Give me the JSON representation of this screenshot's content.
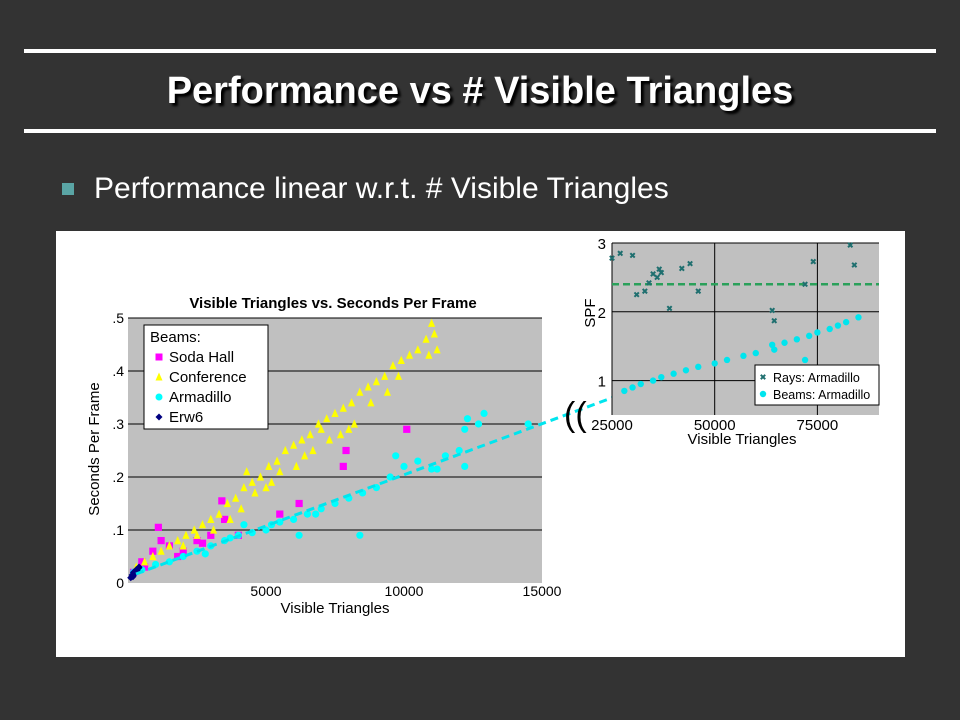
{
  "slide": {
    "title": "Performance vs # Visible Triangles",
    "bullet": "Performance linear w.r.t. # Visible Triangles",
    "accent_color": "#5aa5a5"
  },
  "chart_data": [
    {
      "type": "scatter",
      "title": "Visible Triangles vs. Seconds Per Frame",
      "xlabel": "Visible Triangles",
      "ylabel": "Seconds Per Frame",
      "xlim": [
        0,
        15000
      ],
      "ylim": [
        0,
        0.5
      ],
      "xticks": [
        "5000",
        "10000",
        "15000"
      ],
      "yticks": [
        "0",
        ".1",
        ".2",
        ".3",
        ".4",
        ".5"
      ],
      "legend_title": "Beams:",
      "legend_position": "top-left",
      "background": "#c0c0c0",
      "series": [
        {
          "name": "Soda Hall",
          "marker": "square",
          "color": "#ff00ff",
          "points": [
            [
              200,
              0.02
            ],
            [
              500,
              0.04
            ],
            [
              900,
              0.06
            ],
            [
              1200,
              0.08
            ],
            [
              1500,
              0.07
            ],
            [
              2000,
              0.06
            ],
            [
              2500,
              0.08
            ],
            [
              3000,
              0.09
            ],
            [
              3500,
              0.12
            ],
            [
              1100,
              0.105
            ],
            [
              3400,
              0.155
            ],
            [
              5500,
              0.13
            ],
            [
              6200,
              0.15
            ],
            [
              7800,
              0.22
            ],
            [
              7900,
              0.25
            ],
            [
              10100,
              0.29
            ],
            [
              4000,
              0.09
            ],
            [
              2700,
              0.075
            ],
            [
              1800,
              0.05
            ],
            [
              600,
              0.03
            ]
          ]
        },
        {
          "name": "Conference",
          "marker": "triangle",
          "color": "#ffff00",
          "points": [
            [
              300,
              0.03
            ],
            [
              600,
              0.04
            ],
            [
              900,
              0.05
            ],
            [
              1200,
              0.06
            ],
            [
              1500,
              0.07
            ],
            [
              1800,
              0.08
            ],
            [
              2100,
              0.09
            ],
            [
              2400,
              0.1
            ],
            [
              2700,
              0.11
            ],
            [
              3000,
              0.12
            ],
            [
              3300,
              0.13
            ],
            [
              3600,
              0.15
            ],
            [
              3900,
              0.16
            ],
            [
              4200,
              0.18
            ],
            [
              4500,
              0.19
            ],
            [
              4800,
              0.2
            ],
            [
              5100,
              0.22
            ],
            [
              5400,
              0.23
            ],
            [
              5700,
              0.25
            ],
            [
              6000,
              0.26
            ],
            [
              6300,
              0.27
            ],
            [
              6600,
              0.28
            ],
            [
              6900,
              0.3
            ],
            [
              7200,
              0.31
            ],
            [
              7500,
              0.32
            ],
            [
              7800,
              0.33
            ],
            [
              8100,
              0.34
            ],
            [
              8400,
              0.36
            ],
            [
              8700,
              0.37
            ],
            [
              9000,
              0.38
            ],
            [
              9300,
              0.39
            ],
            [
              9600,
              0.41
            ],
            [
              9900,
              0.42
            ],
            [
              10200,
              0.43
            ],
            [
              10500,
              0.44
            ],
            [
              10800,
              0.46
            ],
            [
              11000,
              0.49
            ],
            [
              11100,
              0.47
            ],
            [
              11200,
              0.44
            ],
            [
              10900,
              0.43
            ],
            [
              2000,
              0.07
            ],
            [
              2500,
              0.09
            ],
            [
              3100,
              0.1
            ],
            [
              3700,
              0.12
            ],
            [
              4100,
              0.14
            ],
            [
              4600,
              0.17
            ],
            [
              5000,
              0.18
            ],
            [
              5500,
              0.21
            ],
            [
              6100,
              0.22
            ],
            [
              6700,
              0.25
            ],
            [
              7300,
              0.27
            ],
            [
              7700,
              0.28
            ],
            [
              8200,
              0.3
            ],
            [
              8800,
              0.34
            ],
            [
              9400,
              0.36
            ],
            [
              9800,
              0.39
            ],
            [
              4300,
              0.21
            ],
            [
              5200,
              0.19
            ],
            [
              6400,
              0.24
            ],
            [
              7000,
              0.29
            ],
            [
              8000,
              0.29
            ]
          ]
        },
        {
          "name": "Armadillo",
          "marker": "circle",
          "color": "#00ffff",
          "points": [
            [
              200,
              0.02
            ],
            [
              500,
              0.025
            ],
            [
              1000,
              0.035
            ],
            [
              1500,
              0.04
            ],
            [
              2000,
              0.05
            ],
            [
              2500,
              0.06
            ],
            [
              3000,
              0.07
            ],
            [
              3500,
              0.08
            ],
            [
              4000,
              0.09
            ],
            [
              4500,
              0.095
            ],
            [
              5000,
              0.1
            ],
            [
              5500,
              0.115
            ],
            [
              6000,
              0.12
            ],
            [
              6500,
              0.13
            ],
            [
              7000,
              0.14
            ],
            [
              7500,
              0.15
            ],
            [
              8000,
              0.16
            ],
            [
              8500,
              0.17
            ],
            [
              9000,
              0.18
            ],
            [
              9500,
              0.2
            ],
            [
              10000,
              0.22
            ],
            [
              10500,
              0.23
            ],
            [
              11000,
              0.215
            ],
            [
              11500,
              0.24
            ],
            [
              12000,
              0.25
            ],
            [
              12200,
              0.29
            ],
            [
              12300,
              0.31
            ],
            [
              12700,
              0.3
            ],
            [
              12900,
              0.32
            ],
            [
              14500,
              0.3
            ],
            [
              9700,
              0.24
            ],
            [
              6200,
              0.09
            ],
            [
              5200,
              0.11
            ],
            [
              4200,
              0.11
            ],
            [
              8400,
              0.09
            ],
            [
              12200,
              0.22
            ],
            [
              11200,
              0.215
            ],
            [
              3700,
              0.085
            ],
            [
              2800,
              0.055
            ],
            [
              6800,
              0.13
            ]
          ]
        },
        {
          "name": "Erw6",
          "marker": "diamond",
          "color": "#000080",
          "points": [
            [
              100,
              0.01
            ],
            [
              150,
              0.015
            ],
            [
              200,
              0.02
            ],
            [
              250,
              0.018
            ],
            [
              300,
              0.025
            ],
            [
              350,
              0.022
            ],
            [
              400,
              0.03
            ],
            [
              180,
              0.012
            ],
            [
              280,
              0.02
            ],
            [
              380,
              0.028
            ]
          ]
        }
      ]
    },
    {
      "type": "scatter",
      "title": "",
      "xlabel": "Visible Triangles",
      "ylabel": "SPF",
      "xlim": [
        25000,
        90000
      ],
      "ylim": [
        0.5,
        3.0
      ],
      "xticks": [
        "25000",
        "50000",
        "75000"
      ],
      "yticks": [
        "1",
        "2",
        "3"
      ],
      "legend_position": "bottom-right",
      "background": "#c0c0c0",
      "series": [
        {
          "name": "Rays:  Armadillo",
          "marker": "x",
          "color": "#1f6f6f",
          "points": [
            [
              25000,
              2.78
            ],
            [
              27000,
              2.85
            ],
            [
              30000,
              2.82
            ],
            [
              31000,
              2.25
            ],
            [
              33000,
              2.3
            ],
            [
              35000,
              2.55
            ],
            [
              37000,
              2.57
            ],
            [
              36000,
              2.5
            ],
            [
              39000,
              2.05
            ],
            [
              42000,
              2.63
            ],
            [
              44000,
              2.7
            ],
            [
              46000,
              2.3
            ],
            [
              64000,
              2.02
            ],
            [
              64500,
              1.87
            ],
            [
              72000,
              2.4
            ],
            [
              74000,
              2.73
            ],
            [
              83000,
              2.97
            ],
            [
              84000,
              2.68
            ],
            [
              34000,
              2.42
            ],
            [
              36500,
              2.62
            ]
          ]
        },
        {
          "name": "Beams: Armadillo",
          "marker": "circle",
          "color": "#00e5ee",
          "points": [
            [
              28000,
              0.85
            ],
            [
              30000,
              0.9
            ],
            [
              32000,
              0.95
            ],
            [
              35000,
              1.0
            ],
            [
              37000,
              1.05
            ],
            [
              40000,
              1.1
            ],
            [
              43000,
              1.15
            ],
            [
              46000,
              1.2
            ],
            [
              50000,
              1.25
            ],
            [
              53000,
              1.3
            ],
            [
              57000,
              1.36
            ],
            [
              60000,
              1.4
            ],
            [
              64000,
              1.52
            ],
            [
              67000,
              1.55
            ],
            [
              70000,
              1.6
            ],
            [
              73000,
              1.65
            ],
            [
              75000,
              1.7
            ],
            [
              78000,
              1.75
            ],
            [
              80000,
              1.8
            ],
            [
              82000,
              1.85
            ],
            [
              85000,
              1.92
            ],
            [
              64500,
              1.45
            ],
            [
              72000,
              1.3
            ]
          ]
        }
      ],
      "reference_line": {
        "y": 2.4,
        "color": "#2aa05a"
      }
    }
  ],
  "connector": {
    "color": "#00e5ee",
    "break_mark": "(("
  }
}
